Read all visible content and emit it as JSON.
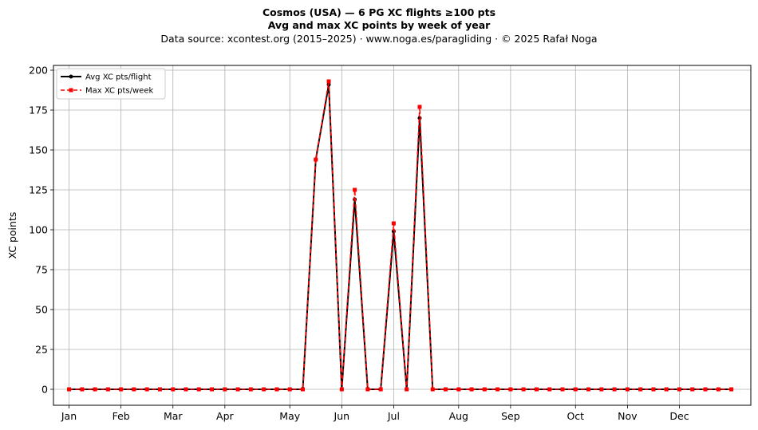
{
  "header": {
    "title": "Cosmos (USA)  —  6 PG XC flights ≥100 pts",
    "subtitle": "Avg and max XC points by week of year",
    "source": "Data source: xcontest.org (2015–2025)  ·  www.noga.es/paragliding  ·  © 2025 Rafał Noga"
  },
  "chart_data": {
    "type": "line",
    "title": "Cosmos (USA)  —  6 PG XC flights ≥100 pts",
    "subtitle": "Avg and max XC points by week of year",
    "xlabel": "",
    "ylabel": "XC points",
    "x": [
      1,
      2,
      3,
      4,
      5,
      6,
      7,
      8,
      9,
      10,
      11,
      12,
      13,
      14,
      15,
      16,
      17,
      18,
      19,
      20,
      21,
      22,
      23,
      24,
      25,
      26,
      27,
      28,
      29,
      30,
      31,
      32,
      33,
      34,
      35,
      36,
      37,
      38,
      39,
      40,
      41,
      42,
      43,
      44,
      45,
      46,
      47,
      48,
      49,
      50,
      51,
      52
    ],
    "xlim": [
      -0.2,
      53.5
    ],
    "x_ticks": [
      {
        "pos": 1,
        "label": "Jan"
      },
      {
        "pos": 5,
        "label": "Feb"
      },
      {
        "pos": 9,
        "label": "Mar"
      },
      {
        "pos": 13,
        "label": "Apr"
      },
      {
        "pos": 18,
        "label": "May"
      },
      {
        "pos": 22,
        "label": "Jun"
      },
      {
        "pos": 26,
        "label": "Jul"
      },
      {
        "pos": 31,
        "label": "Aug"
      },
      {
        "pos": 35,
        "label": "Sep"
      },
      {
        "pos": 40,
        "label": "Oct"
      },
      {
        "pos": 44,
        "label": "Nov"
      },
      {
        "pos": 48,
        "label": "Dec"
      }
    ],
    "ylim": [
      -10,
      203
    ],
    "y_ticks": [
      0,
      25,
      50,
      75,
      100,
      125,
      150,
      175,
      200
    ],
    "grid": true,
    "legend_position": "top-left",
    "series": [
      {
        "name": "Avg XC pts/flight",
        "color": "#000000",
        "style": "solid",
        "marker": "circle",
        "values": [
          0,
          0,
          0,
          0,
          0,
          0,
          0,
          0,
          0,
          0,
          0,
          0,
          0,
          0,
          0,
          0,
          0,
          0,
          0,
          144,
          191,
          0,
          119,
          0,
          0,
          99,
          0,
          170,
          0,
          0,
          0,
          0,
          0,
          0,
          0,
          0,
          0,
          0,
          0,
          0,
          0,
          0,
          0,
          0,
          0,
          0,
          0,
          0,
          0,
          0,
          0,
          0
        ]
      },
      {
        "name": "Max XC pts/week",
        "color": "#ff0000",
        "style": "dashed",
        "marker": "square",
        "values": [
          0,
          0,
          0,
          0,
          0,
          0,
          0,
          0,
          0,
          0,
          0,
          0,
          0,
          0,
          0,
          0,
          0,
          0,
          0,
          144,
          193,
          0,
          125,
          0,
          0,
          104,
          0,
          177,
          0,
          0,
          0,
          0,
          0,
          0,
          0,
          0,
          0,
          0,
          0,
          0,
          0,
          0,
          0,
          0,
          0,
          0,
          0,
          0,
          0,
          0,
          0,
          0
        ]
      }
    ]
  }
}
